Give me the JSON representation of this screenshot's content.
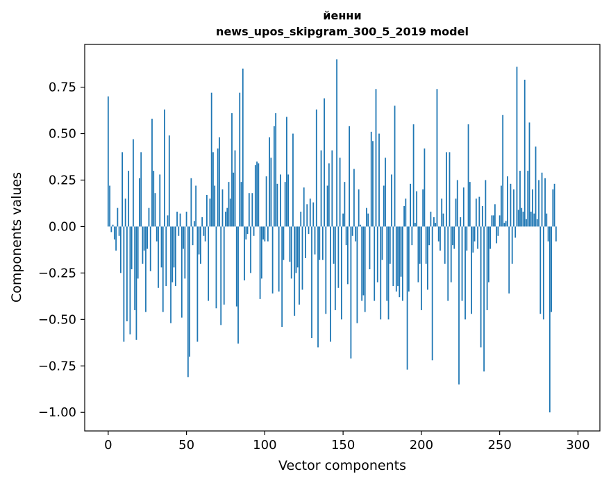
{
  "chart_data": {
    "type": "bar",
    "title_line1": "йенни",
    "title_line2": "news_upos_skipgram_300_5_2019 model",
    "xlabel": "Vector components",
    "ylabel": "Components values",
    "xlim": [
      -15,
      314
    ],
    "ylim": [
      -1.1,
      0.98
    ],
    "xticks": [
      0,
      50,
      100,
      150,
      200,
      250,
      300
    ],
    "xtick_labels": [
      "0",
      "50",
      "100",
      "150",
      "200",
      "250",
      "300"
    ],
    "yticks": [
      -1.0,
      -0.75,
      -0.5,
      -0.25,
      0.0,
      0.25,
      0.5,
      0.75
    ],
    "ytick_labels": [
      "−1.00",
      "−0.75",
      "−0.50",
      "−0.25",
      "0.00",
      "0.25",
      "0.50",
      "0.75"
    ],
    "bar_color": "#1f77b4",
    "grid": false,
    "values": [
      0.7,
      0.22,
      -0.03,
      0.01,
      -0.07,
      -0.13,
      0.1,
      -0.05,
      -0.25,
      0.4,
      -0.62,
      0.15,
      -0.51,
      0.3,
      -0.58,
      -0.23,
      0.47,
      -0.45,
      -0.61,
      -0.28,
      0.26,
      0.4,
      -0.2,
      -0.13,
      -0.46,
      -0.12,
      0.1,
      -0.24,
      0.58,
      0.3,
      0.18,
      -0.08,
      -0.33,
      0.28,
      -0.22,
      -0.46,
      0.63,
      -0.32,
      0.06,
      0.49,
      -0.52,
      -0.3,
      -0.22,
      -0.32,
      0.08,
      -0.05,
      0.07,
      -0.49,
      -0.12,
      -0.28,
      0.08,
      -0.81,
      -0.7,
      0.26,
      -0.1,
      0.03,
      0.22,
      -0.62,
      -0.15,
      -0.2,
      0.05,
      -0.05,
      -0.08,
      0.17,
      -0.4,
      0.15,
      0.72,
      0.4,
      0.22,
      -0.44,
      0.42,
      0.48,
      -0.53,
      0.2,
      -0.42,
      0.08,
      0.1,
      0.24,
      0.15,
      0.61,
      0.29,
      0.41,
      -0.43,
      -0.63,
      0.72,
      0.24,
      0.85,
      -0.29,
      -0.07,
      -0.04,
      0.18,
      -0.25,
      0.18,
      -0.05,
      0.33,
      0.35,
      0.34,
      -0.39,
      -0.28,
      -0.07,
      -0.08,
      0.27,
      -0.08,
      0.48,
      0.37,
      -0.36,
      0.54,
      0.61,
      0.23,
      -0.35,
      0.28,
      -0.54,
      -0.18,
      0.24,
      0.59,
      0.28,
      -0.19,
      -0.28,
      0.5,
      -0.48,
      -0.25,
      -0.22,
      -0.42,
      0.08,
      -0.34,
      0.21,
      -0.17,
      0.12,
      -0.04,
      0.15,
      -0.6,
      0.13,
      -0.15,
      0.63,
      -0.65,
      -0.18,
      0.41,
      -0.18,
      0.69,
      -0.47,
      0.22,
      0.34,
      -0.62,
      0.41,
      -0.2,
      -0.45,
      0.9,
      -0.33,
      0.37,
      -0.5,
      0.07,
      0.24,
      -0.1,
      -0.31,
      0.54,
      -0.71,
      -0.05,
      0.31,
      -0.08,
      -0.52,
      0.2,
      0.01,
      -0.4,
      -0.37,
      -0.46,
      0.1,
      0.07,
      -0.23,
      0.51,
      0.46,
      -0.4,
      0.74,
      -0.3,
      0.5,
      -0.5,
      -0.18,
      0.22,
      0.37,
      -0.4,
      -0.5,
      -0.2,
      0.28,
      -0.32,
      0.65,
      -0.35,
      -0.32,
      -0.38,
      -0.27,
      -0.4,
      0.11,
      0.15,
      -0.77,
      -0.35,
      0.23,
      -0.1,
      0.55,
      0.02,
      0.19,
      -0.3,
      -0.2,
      -0.45,
      0.2,
      0.42,
      -0.2,
      -0.34,
      -0.1,
      0.08,
      -0.72,
      0.05,
      0.02,
      0.74,
      -0.08,
      -0.13,
      0.15,
      0.07,
      -0.2,
      0.4,
      -0.4,
      0.4,
      -0.3,
      -0.1,
      -0.12,
      0.15,
      0.25,
      -0.85,
      0.05,
      -0.4,
      0.21,
      -0.5,
      -0.13,
      0.55,
      0.24,
      -0.47,
      -0.14,
      -0.08,
      0.15,
      -0.12,
      0.16,
      -0.65,
      0.11,
      -0.78,
      0.25,
      -0.45,
      -0.3,
      -0.12,
      0.06,
      0.06,
      0.12,
      -0.09,
      -0.05,
      0.06,
      0.22,
      0.6,
      0.02,
      0.03,
      0.27,
      -0.36,
      0.23,
      -0.2,
      0.2,
      -0.06,
      0.86,
      0.09,
      0.3,
      0.1,
      0.08,
      0.79,
      0.04,
      0.3,
      0.56,
      0.08,
      0.2,
      0.07,
      0.43,
      0.04,
      0.25,
      -0.47,
      0.29,
      -0.5,
      0.26,
      0.07,
      -0.08,
      -1.0,
      -0.46,
      0.2,
      0.23,
      -0.08
    ]
  }
}
